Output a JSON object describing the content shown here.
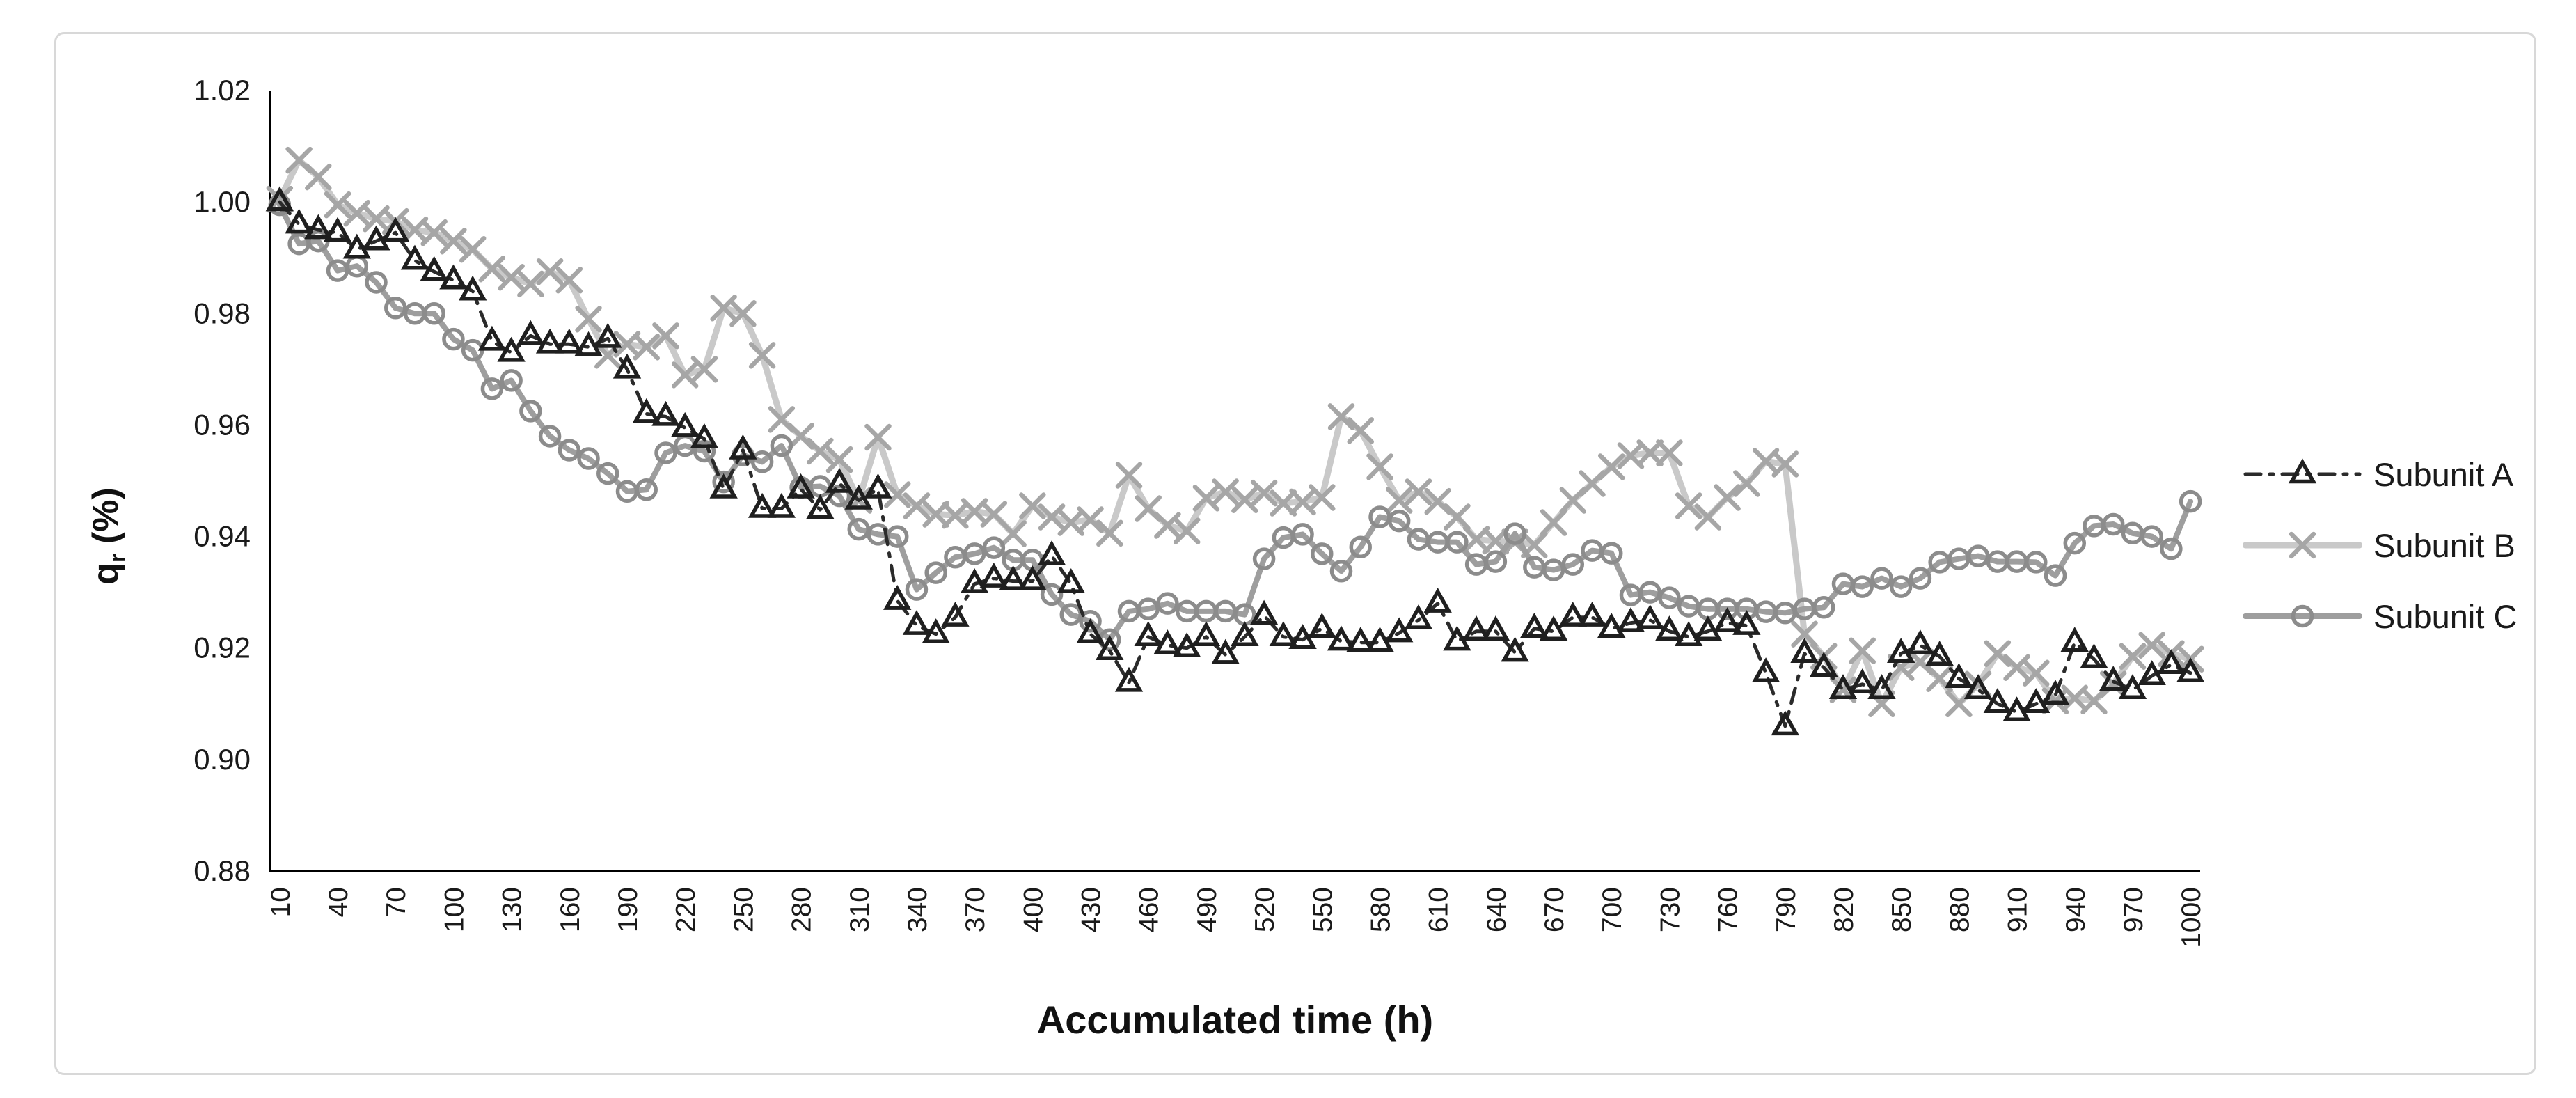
{
  "figure": {
    "background": "#ffffff",
    "card_border_color": "#d8d8d8"
  },
  "chart_data": {
    "type": "line",
    "title": "",
    "xlabel": "Accumulated time (h)",
    "ylabel_q": "q",
    "ylabel_sub": "r",
    "ylabel_unit": " (%)",
    "ylim": [
      0.88,
      1.02
    ],
    "ytick_step": 0.02,
    "x_label_every_n_points": 3,
    "grid": false,
    "legend_position": "right",
    "axis_color": "#000000",
    "tick_label_color": "#1a1a1a",
    "x": [
      10,
      20,
      30,
      40,
      50,
      60,
      70,
      80,
      90,
      100,
      110,
      120,
      130,
      140,
      150,
      160,
      170,
      180,
      190,
      200,
      210,
      220,
      230,
      240,
      250,
      260,
      270,
      280,
      290,
      300,
      310,
      320,
      330,
      340,
      350,
      360,
      370,
      380,
      390,
      400,
      410,
      420,
      430,
      440,
      450,
      460,
      470,
      480,
      490,
      500,
      510,
      520,
      530,
      540,
      550,
      560,
      570,
      580,
      590,
      600,
      610,
      620,
      630,
      640,
      650,
      660,
      670,
      680,
      690,
      700,
      710,
      720,
      730,
      740,
      750,
      760,
      770,
      780,
      790,
      800,
      810,
      820,
      830,
      840,
      850,
      860,
      870,
      880,
      890,
      900,
      910,
      920,
      930,
      940,
      950,
      960,
      970,
      980,
      990,
      1000
    ],
    "series": [
      {
        "name": "Subunit A",
        "marker": "triangle",
        "line_style": "dashed",
        "line_color": "#2b2b2b",
        "marker_color": "#1f1f1f",
        "values": [
          1.0,
          0.996,
          0.995,
          0.9945,
          0.9915,
          0.993,
          0.9945,
          0.9895,
          0.9875,
          0.986,
          0.984,
          0.975,
          0.973,
          0.976,
          0.9745,
          0.9745,
          0.974,
          0.9755,
          0.97,
          0.962,
          0.9615,
          0.9595,
          0.9575,
          0.9485,
          0.9555,
          0.945,
          0.945,
          0.9485,
          0.9448,
          0.9495,
          0.9465,
          0.9485,
          0.9285,
          0.924,
          0.9225,
          0.9255,
          0.9315,
          0.9325,
          0.932,
          0.932,
          0.9365,
          0.9315,
          0.9225,
          0.9195,
          0.9138,
          0.922,
          0.9205,
          0.92,
          0.922,
          0.9188,
          0.922,
          0.9258,
          0.922,
          0.9215,
          0.9235,
          0.9212,
          0.921,
          0.921,
          0.9227,
          0.925,
          0.928,
          0.9212,
          0.923,
          0.923,
          0.9192,
          0.9235,
          0.923,
          0.9255,
          0.9255,
          0.9235,
          0.9245,
          0.925,
          0.923,
          0.922,
          0.923,
          0.9245,
          0.924,
          0.9155,
          0.906,
          0.919,
          0.9165,
          0.9125,
          0.9135,
          0.9125,
          0.919,
          0.9205,
          0.9185,
          0.9145,
          0.9125,
          0.91,
          0.9085,
          0.91,
          0.9115,
          0.921,
          0.918,
          0.914,
          0.9125,
          0.915,
          0.917,
          0.9155
        ]
      },
      {
        "name": "Subunit B",
        "marker": "x",
        "line_style": "solid",
        "line_color": "#c9c9c9",
        "marker_color": "#a6a6a6",
        "values": [
          1.0005,
          1.0075,
          1.0045,
          0.9995,
          0.998,
          0.997,
          0.9965,
          0.995,
          0.9945,
          0.993,
          0.9915,
          0.988,
          0.9865,
          0.9853,
          0.9875,
          0.986,
          0.979,
          0.9725,
          0.9745,
          0.974,
          0.976,
          0.969,
          0.97,
          0.981,
          0.98,
          0.9725,
          0.961,
          0.958,
          0.9553,
          0.9538,
          0.9465,
          0.9578,
          0.9475,
          0.9455,
          0.944,
          0.9438,
          0.9445,
          0.944,
          0.9405,
          0.9455,
          0.9435,
          0.9425,
          0.943,
          0.9406,
          0.951,
          0.945,
          0.942,
          0.941,
          0.9469,
          0.948,
          0.9466,
          0.9478,
          0.946,
          0.9462,
          0.947,
          0.9615,
          0.959,
          0.9525,
          0.9465,
          0.948,
          0.9463,
          0.9435,
          0.9395,
          0.9392,
          0.939,
          0.9385,
          0.9425,
          0.9465,
          0.9495,
          0.9525,
          0.9545,
          0.955,
          0.955,
          0.9455,
          0.9435,
          0.947,
          0.9495,
          0.9535,
          0.953,
          0.9225,
          0.9185,
          0.9125,
          0.9195,
          0.91,
          0.9165,
          0.9175,
          0.9145,
          0.91,
          0.9135,
          0.919,
          0.9165,
          0.9155,
          0.9105,
          0.911,
          0.9105,
          0.9135,
          0.9185,
          0.9205,
          0.919,
          0.918
        ]
      },
      {
        "name": "Subunit C",
        "marker": "circle",
        "line_style": "solid",
        "line_color": "#9e9e9e",
        "marker_color": "#8c8c8c",
        "values": [
          0.9995,
          0.9925,
          0.993,
          0.9877,
          0.9885,
          0.9856,
          0.981,
          0.98,
          0.98,
          0.9754,
          0.9734,
          0.9665,
          0.968,
          0.9625,
          0.958,
          0.9555,
          0.954,
          0.9513,
          0.9481,
          0.9484,
          0.955,
          0.9563,
          0.9553,
          0.9498,
          0.9546,
          0.9534,
          0.9563,
          0.9488,
          0.949,
          0.9473,
          0.9413,
          0.9404,
          0.94,
          0.9305,
          0.9335,
          0.9363,
          0.9369,
          0.938,
          0.9358,
          0.9358,
          0.9296,
          0.926,
          0.9248,
          0.9215,
          0.9266,
          0.927,
          0.928,
          0.9266,
          0.9266,
          0.9266,
          0.926,
          0.936,
          0.9398,
          0.9404,
          0.9369,
          0.9338,
          0.9381,
          0.9435,
          0.9428,
          0.9395,
          0.939,
          0.939,
          0.935,
          0.9355,
          0.9405,
          0.9345,
          0.934,
          0.935,
          0.9375,
          0.937,
          0.9295,
          0.93,
          0.929,
          0.9275,
          0.927,
          0.927,
          0.927,
          0.9265,
          0.9263,
          0.927,
          0.9273,
          0.9315,
          0.931,
          0.9325,
          0.931,
          0.9325,
          0.9354,
          0.936,
          0.9365,
          0.9355,
          0.9355,
          0.9354,
          0.933,
          0.9388,
          0.9419,
          0.9422,
          0.9406,
          0.94,
          0.9378,
          0.9463
        ]
      }
    ]
  }
}
